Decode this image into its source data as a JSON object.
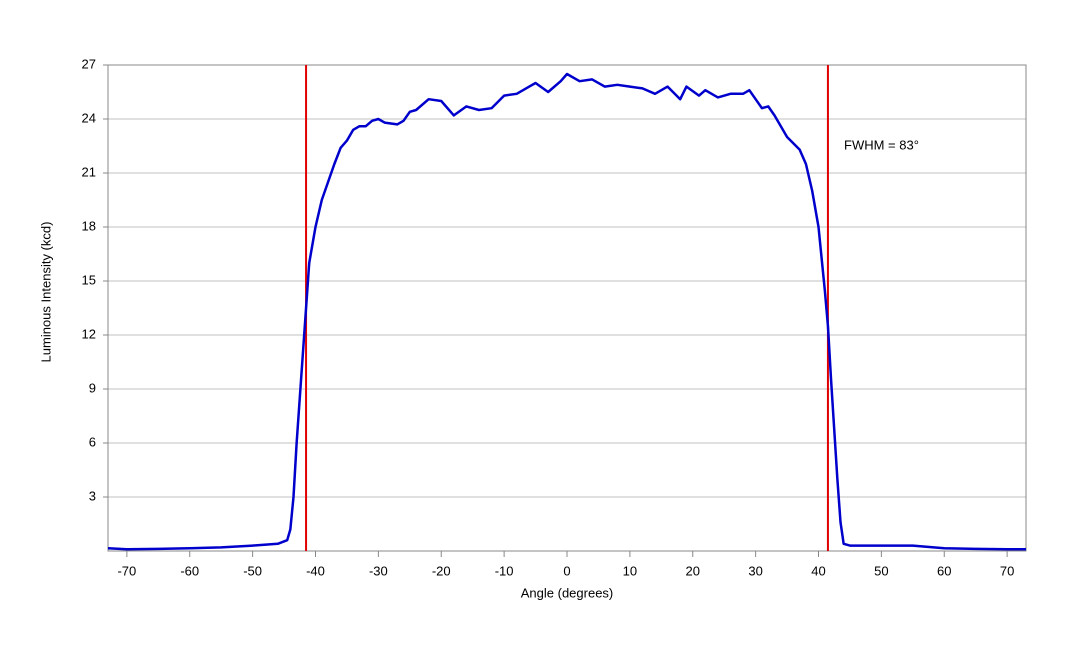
{
  "chart_data": {
    "type": "line",
    "x_label": "Angle (degrees)",
    "y_label": "Luminous Intensity (kcd)",
    "annotation": "FWHM = 83°",
    "xlim": [
      -73,
      73
    ],
    "ylim": [
      0,
      27
    ],
    "xticks": [
      -70,
      -60,
      -50,
      -40,
      -30,
      -20,
      -10,
      0,
      10,
      20,
      30,
      40,
      50,
      60,
      70
    ],
    "yticks": [
      3,
      6,
      9,
      12,
      15,
      18,
      21,
      24,
      27
    ],
    "grid": true,
    "vlines": [
      -41.5,
      41.5
    ],
    "vline_color": "#e00000",
    "x": [
      -73,
      -70,
      -65,
      -60,
      -55,
      -50,
      -46,
      -44.5,
      -44,
      -43.5,
      -43,
      -42,
      -41.5,
      -41,
      -40,
      -39,
      -38,
      -37,
      -36,
      -35,
      -34,
      -33,
      -32,
      -31,
      -30,
      -29,
      -27,
      -26,
      -25,
      -24,
      -22,
      -20,
      -18,
      -16,
      -14,
      -12,
      -10,
      -8,
      -6,
      -5,
      -3,
      -1,
      0,
      2,
      4,
      6,
      8,
      10,
      12,
      14,
      16,
      18,
      19,
      21,
      22,
      24,
      26,
      28,
      29,
      31,
      32,
      33,
      35,
      37,
      38,
      39,
      40,
      41,
      41.5,
      42,
      43,
      43.5,
      44,
      45,
      50,
      55,
      60,
      65,
      70,
      73
    ],
    "series": [
      {
        "color": "#0000cc",
        "values": [
          0.15,
          0.1,
          0.12,
          0.15,
          0.2,
          0.3,
          0.4,
          0.6,
          1.2,
          3,
          6,
          11,
          13.5,
          16,
          18,
          19.5,
          20.5,
          21.5,
          22.4,
          22.8,
          23.4,
          23.6,
          23.6,
          23.9,
          24,
          23.8,
          23.7,
          23.9,
          24.4,
          24.5,
          25.1,
          25,
          24.2,
          24.7,
          24.5,
          24.6,
          25.3,
          25.4,
          25.8,
          26,
          25.5,
          26.1,
          26.5,
          26.1,
          26.2,
          25.8,
          25.9,
          25.8,
          25.7,
          25.4,
          25.8,
          25.1,
          25.8,
          25.3,
          25.6,
          25.2,
          25.4,
          25.4,
          25.6,
          24.6,
          24.7,
          24.2,
          23,
          22.3,
          21.5,
          20,
          18,
          14.5,
          12.5,
          9.5,
          4,
          1.6,
          0.4,
          0.3,
          0.3,
          0.3,
          0.15,
          0.12,
          0.1,
          0.1
        ]
      }
    ]
  }
}
